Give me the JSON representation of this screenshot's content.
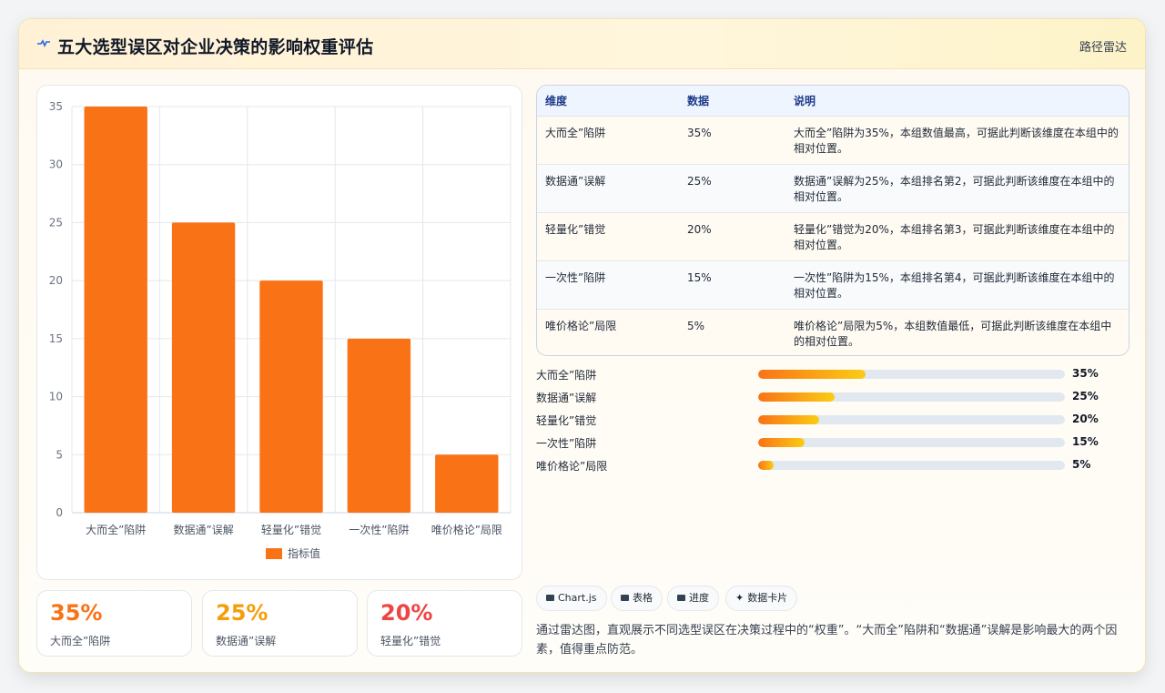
{
  "header": {
    "title": "五大选型误区对企业决策的影响权重评估",
    "tag": "路径雷达",
    "icon": "pulse-icon"
  },
  "colors": {
    "bar": "#f97316",
    "stat_1": "#f97316",
    "stat_2": "#f59e0b",
    "stat_3": "#ef4444",
    "progress_start": "#f97316",
    "progress_end": "#facc15"
  },
  "chart_data": {
    "type": "bar",
    "categories": [
      "大而全”陷阱",
      "数据通”误解",
      "轻量化”错觉",
      "一次性”陷阱",
      "唯价格论”局限"
    ],
    "series": [
      {
        "name": "指标值",
        "values": [
          35,
          25,
          20,
          15,
          5
        ]
      }
    ],
    "title": "",
    "xlabel": "",
    "ylabel": "",
    "ylim": [
      0,
      35
    ],
    "yticks": [
      0,
      5,
      10,
      15,
      20,
      25,
      30,
      35
    ],
    "grid": true,
    "legend": "bottom"
  },
  "stats": [
    {
      "value": "35%",
      "label": "大而全”陷阱"
    },
    {
      "value": "25%",
      "label": "数据通”误解"
    },
    {
      "value": "20%",
      "label": "轻量化”错觉"
    }
  ],
  "table": {
    "headers": [
      "维度",
      "数据",
      "说明"
    ],
    "rows": [
      {
        "name": "大而全”陷阱",
        "value": "35%",
        "desc": "大而全”陷阱为35%，本组数值最高，可据此判断该维度在本组中的相对位置。"
      },
      {
        "name": "数据通”误解",
        "value": "25%",
        "desc": "数据通”误解为25%，本组排名第2，可据此判断该维度在本组中的相对位置。"
      },
      {
        "name": "轻量化”错觉",
        "value": "20%",
        "desc": "轻量化”错觉为20%，本组排名第3，可据此判断该维度在本组中的相对位置。"
      },
      {
        "name": "一次性”陷阱",
        "value": "15%",
        "desc": "一次性”陷阱为15%，本组排名第4，可据此判断该维度在本组中的相对位置。"
      },
      {
        "name": "唯价格论”局限",
        "value": "5%",
        "desc": "唯价格论”局限为5%，本组数值最低，可据此判断该维度在本组中的相对位置。"
      }
    ]
  },
  "progress": [
    {
      "name": "大而全”陷阱",
      "label": "35%",
      "fraction": 0.35
    },
    {
      "name": "数据通”误解",
      "label": "25%",
      "fraction": 0.25
    },
    {
      "name": "轻量化”错觉",
      "label": "20%",
      "fraction": 0.2
    },
    {
      "name": "一次性”陷阱",
      "label": "15%",
      "fraction": 0.15
    },
    {
      "name": "唯价格论”局限",
      "label": "5%",
      "fraction": 0.05
    }
  ],
  "chips": [
    {
      "label": "Chart.js",
      "icon": "chart-icon"
    },
    {
      "label": "表格",
      "icon": "table-icon"
    },
    {
      "label": "进度",
      "icon": "progress-icon"
    },
    {
      "label": "数据卡片",
      "icon": "sparkle-icon"
    }
  ],
  "note": "通过雷达图，直观展示不同选型误区在决策过程中的“权重”。“大而全”陷阱和“数据通”误解是影响最大的两个因素，值得重点防范。"
}
